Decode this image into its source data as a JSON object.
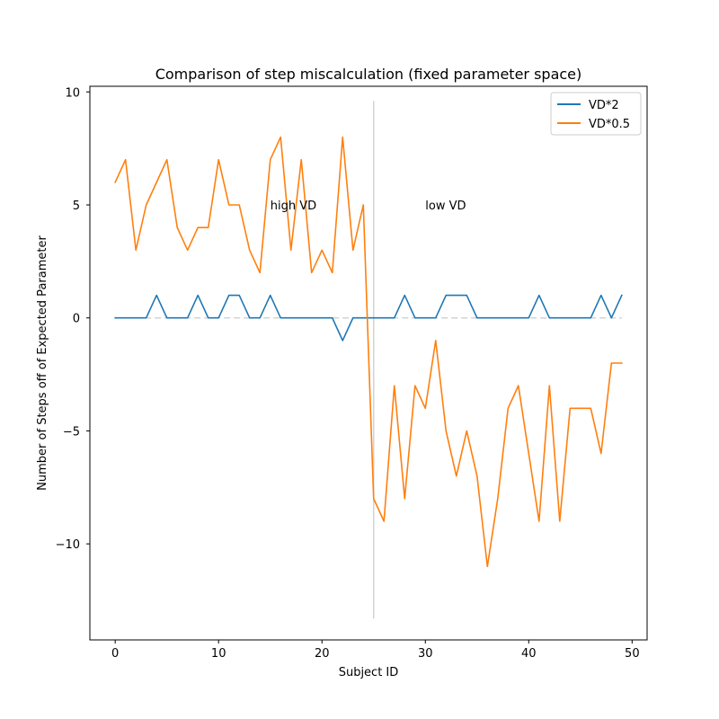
{
  "chart_data": {
    "type": "line",
    "title": "Comparison of step miscalculation (fixed parameter space)",
    "xlabel": "Subject ID",
    "ylabel": "Number of Steps off of Expected Parameter",
    "xlim": [
      -2.45,
      51.45
    ],
    "ylim": [
      -14.25,
      10.25
    ],
    "xticks": [
      0,
      10,
      20,
      30,
      40,
      50
    ],
    "yticks": [
      {
        "value": 10,
        "label": "10"
      },
      {
        "value": 5,
        "label": "5"
      },
      {
        "value": 0,
        "label": "0"
      },
      {
        "value": -5,
        "label": "−5"
      },
      {
        "value": -10,
        "label": "−10"
      }
    ],
    "x": [
      0,
      1,
      2,
      3,
      4,
      5,
      6,
      7,
      8,
      9,
      10,
      11,
      12,
      13,
      14,
      15,
      16,
      17,
      18,
      19,
      20,
      21,
      22,
      23,
      24,
      25,
      26,
      27,
      28,
      29,
      30,
      31,
      32,
      33,
      34,
      35,
      36,
      37,
      38,
      39,
      40,
      41,
      42,
      43,
      44,
      45,
      46,
      47,
      48,
      49
    ],
    "series": [
      {
        "name": "VD*2",
        "color": "#1f77b4",
        "values": [
          0,
          0,
          0,
          0,
          1,
          0,
          0,
          0,
          1,
          0,
          0,
          1,
          1,
          0,
          0,
          1,
          0,
          0,
          0,
          0,
          0,
          0,
          -1,
          0,
          0,
          0,
          0,
          0,
          1,
          0,
          0,
          0,
          1,
          1,
          1,
          0,
          0,
          0,
          0,
          0,
          0,
          1,
          0,
          0,
          0,
          0,
          0,
          1,
          0,
          1
        ]
      },
      {
        "name": "VD*0.5",
        "color": "#ff7f0e",
        "values": [
          6,
          7,
          3,
          5,
          6,
          7,
          4,
          3,
          4,
          4,
          7,
          5,
          5,
          3,
          2,
          7,
          8,
          3,
          7,
          2,
          3,
          2,
          8,
          3,
          5,
          -8,
          -9,
          -3,
          -8,
          -3,
          -4,
          -1,
          -5,
          -7,
          -5,
          -7,
          -11,
          -8,
          -4,
          -3,
          -6,
          -9,
          -3,
          -9,
          -4,
          -4,
          -4,
          -6,
          -2,
          -2
        ]
      }
    ],
    "reference_line": {
      "y": 0,
      "x_range": [
        0,
        49
      ],
      "color": "#d3d3d3",
      "style": "dashed"
    },
    "divider_line": {
      "x": 25,
      "y_range": [
        -13.3,
        9.6
      ],
      "color": "#d3d3d3"
    },
    "annotations": [
      {
        "text": "high VD",
        "x": 15,
        "y": 5
      },
      {
        "text": "low VD",
        "x": 30,
        "y": 5
      }
    ],
    "legend": {
      "position": "top-right"
    },
    "grid": false
  }
}
